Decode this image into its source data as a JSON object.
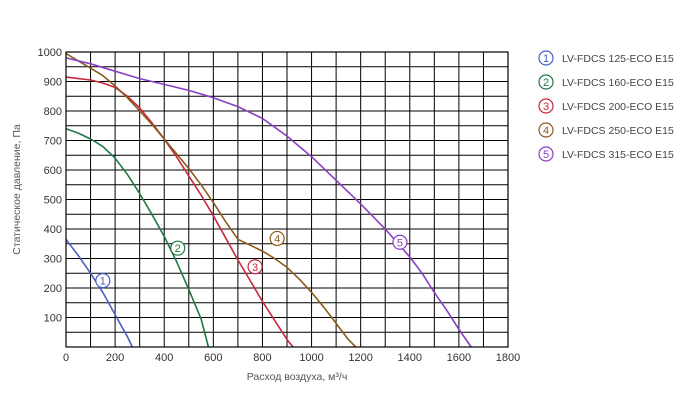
{
  "chart_data": {
    "type": "line",
    "title": "",
    "xlabel": "Расход воздуха, м³/ч",
    "ylabel": "Статическое давление, Па",
    "xlim": [
      0,
      1800
    ],
    "ylim": [
      0,
      1000
    ],
    "xticks": [
      0,
      200,
      400,
      600,
      800,
      1000,
      1200,
      1400,
      1600,
      1800
    ],
    "yticks": [
      100,
      200,
      300,
      400,
      500,
      600,
      700,
      800,
      900,
      1000
    ],
    "grid": true,
    "legend_position": "right",
    "series": [
      {
        "name": "LV-FDCS 125-ECO E15",
        "marker_label": "1",
        "color": "#4a5fc4",
        "marker_at": [
          150,
          225
        ],
        "points": [
          [
            0,
            365
          ],
          [
            50,
            310
          ],
          [
            100,
            250
          ],
          [
            150,
            185
          ],
          [
            200,
            110
          ],
          [
            250,
            35
          ],
          [
            270,
            0
          ]
        ]
      },
      {
        "name": "LV-FDCS 160-ECO E15",
        "marker_label": "2",
        "color": "#1e7a44",
        "marker_at": [
          455,
          335
        ],
        "points": [
          [
            0,
            740
          ],
          [
            50,
            725
          ],
          [
            100,
            705
          ],
          [
            150,
            680
          ],
          [
            200,
            640
          ],
          [
            250,
            585
          ],
          [
            300,
            520
          ],
          [
            350,
            450
          ],
          [
            400,
            375
          ],
          [
            450,
            290
          ],
          [
            500,
            195
          ],
          [
            550,
            95
          ],
          [
            580,
            0
          ]
        ]
      },
      {
        "name": "LV-FDCS 200-ECO E15",
        "marker_label": "3",
        "color": "#c8283c",
        "marker_at": [
          770,
          272
        ],
        "points": [
          [
            0,
            915
          ],
          [
            50,
            910
          ],
          [
            100,
            905
          ],
          [
            150,
            895
          ],
          [
            200,
            880
          ],
          [
            250,
            850
          ],
          [
            300,
            810
          ],
          [
            350,
            760
          ],
          [
            400,
            705
          ],
          [
            450,
            645
          ],
          [
            500,
            580
          ],
          [
            550,
            515
          ],
          [
            600,
            445
          ],
          [
            650,
            370
          ],
          [
            700,
            295
          ],
          [
            750,
            225
          ],
          [
            800,
            155
          ],
          [
            850,
            90
          ],
          [
            900,
            25
          ],
          [
            925,
            0
          ]
        ]
      },
      {
        "name": "LV-FDCS 250-ECO E15",
        "marker_label": "4",
        "color": "#8a5a1c",
        "marker_at": [
          860,
          368
        ],
        "points": [
          [
            0,
            995
          ],
          [
            50,
            970
          ],
          [
            100,
            945
          ],
          [
            150,
            920
          ],
          [
            200,
            885
          ],
          [
            250,
            845
          ],
          [
            300,
            800
          ],
          [
            350,
            755
          ],
          [
            400,
            705
          ],
          [
            450,
            655
          ],
          [
            500,
            605
          ],
          [
            550,
            550
          ],
          [
            600,
            490
          ],
          [
            650,
            425
          ],
          [
            700,
            365
          ],
          [
            750,
            345
          ],
          [
            800,
            325
          ],
          [
            850,
            300
          ],
          [
            900,
            270
          ],
          [
            950,
            230
          ],
          [
            1000,
            185
          ],
          [
            1050,
            135
          ],
          [
            1100,
            80
          ],
          [
            1150,
            25
          ],
          [
            1180,
            0
          ]
        ]
      },
      {
        "name": "LV-FDCS 315-ECO E15",
        "marker_label": "5",
        "color": "#8a3fc0",
        "marker_at": [
          1360,
          355
        ],
        "points": [
          [
            0,
            980
          ],
          [
            100,
            960
          ],
          [
            200,
            935
          ],
          [
            300,
            910
          ],
          [
            400,
            890
          ],
          [
            500,
            870
          ],
          [
            600,
            845
          ],
          [
            700,
            815
          ],
          [
            800,
            775
          ],
          [
            900,
            715
          ],
          [
            1000,
            645
          ],
          [
            1100,
            565
          ],
          [
            1200,
            485
          ],
          [
            1300,
            400
          ],
          [
            1400,
            305
          ],
          [
            1450,
            250
          ],
          [
            1500,
            185
          ],
          [
            1550,
            125
          ],
          [
            1600,
            60
          ],
          [
            1650,
            0
          ]
        ]
      }
    ]
  }
}
